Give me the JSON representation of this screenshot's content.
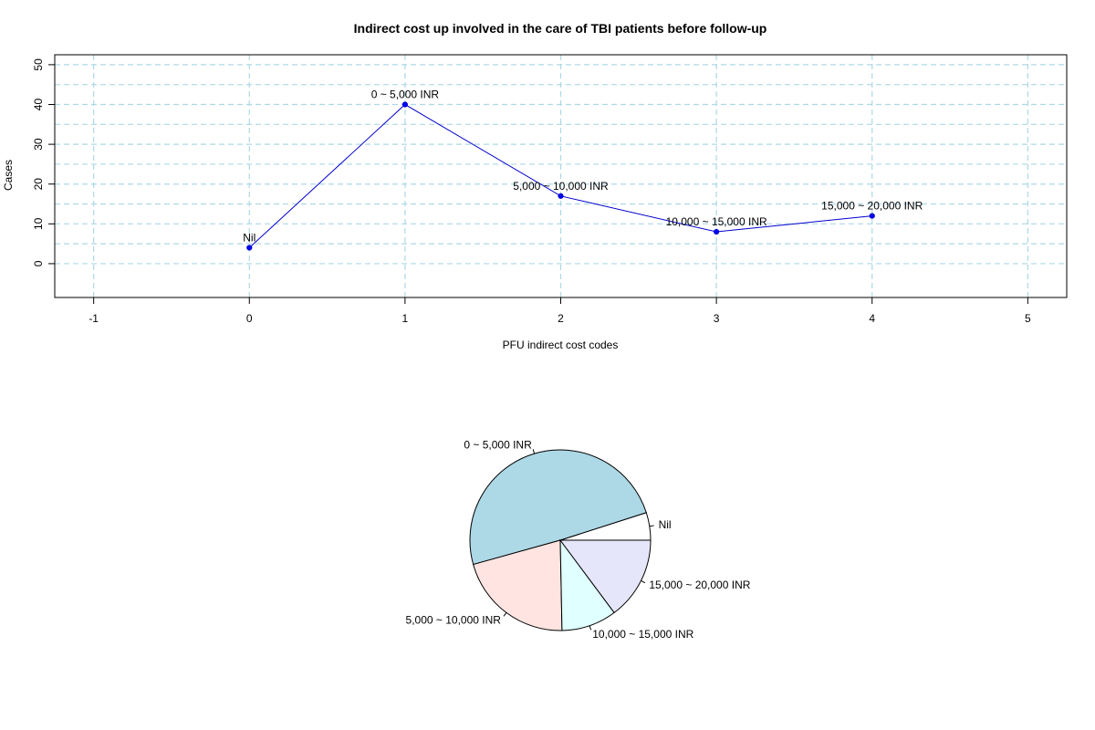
{
  "chart_data": [
    {
      "type": "line",
      "title": "Indirect cost up involved in the care of TBI patients before follow-up",
      "xlabel": "PFU indirect cost codes",
      "ylabel": "Cases",
      "x": [
        0,
        1,
        2,
        3,
        4
      ],
      "values": [
        4,
        40,
        17,
        8,
        12
      ],
      "point_labels": [
        "Nil",
        "0 ~ 5,000 INR",
        "5,000 ~ 10,000 INR",
        "10,000 ~ 15,000 INR",
        "15,000 ~ 20,000 INR"
      ],
      "xlim": [
        -1.25,
        5.25
      ],
      "ylim": [
        -8.5,
        52.5
      ],
      "xticks": [
        -1,
        0,
        1,
        2,
        3,
        4,
        5
      ],
      "yticks": [
        0,
        10,
        20,
        30,
        40,
        50
      ],
      "grid": true,
      "colors": {
        "line": "#0000CD",
        "point": "#0000FF",
        "grid": "#ADD8E6"
      }
    },
    {
      "type": "pie",
      "labels": [
        "Nil",
        "0 ~ 5,000 INR",
        "5,000 ~ 10,000 INR",
        "10,000 ~ 15,000 INR",
        "15,000 ~ 20,000 INR"
      ],
      "values": [
        4,
        40,
        17,
        8,
        12
      ],
      "colors": [
        "#FFFFFF",
        "#ADD8E6",
        "#FFE4E1",
        "#E0FFFF",
        "#E6E6FA"
      ]
    }
  ]
}
